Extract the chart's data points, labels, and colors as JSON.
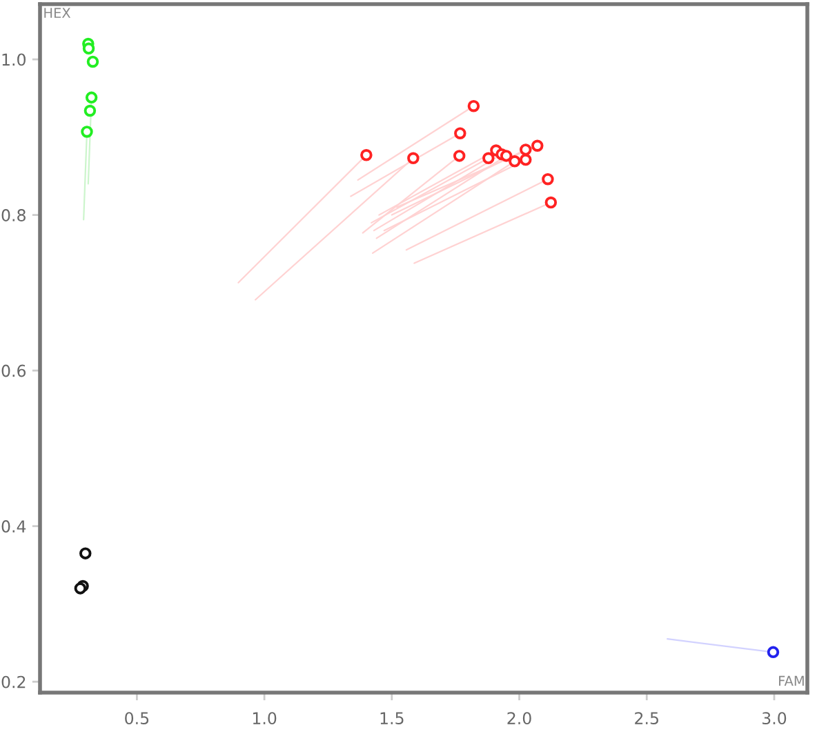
{
  "chart_data": {
    "type": "scatter",
    "xlabel": "FAM",
    "ylabel": "HEX",
    "marker": "circle",
    "xlim": [
      0.12,
      3.13
    ],
    "ylim": [
      0.186,
      1.071
    ],
    "xticks": [
      0.5,
      {
        "value": 1,
        "label": "1.0"
      },
      1.5,
      {
        "value": 2,
        "label": "2.0"
      },
      2.5,
      {
        "value": 3,
        "label": "3.0"
      }
    ],
    "yticks": [
      0.2,
      0.4,
      0.6,
      0.8,
      {
        "value": 1,
        "label": "1.0"
      }
    ],
    "series": [
      {
        "type": "line",
        "marker": "none",
        "color": "#ffd2d2",
        "x": [
          0.898,
          1.4
        ],
        "values": [
          0.713,
          0.877
        ]
      },
      {
        "type": "line",
        "marker": "none",
        "color": "#ffd2d2",
        "x": [
          0.965,
          1.584
        ],
        "values": [
          0.691,
          0.873
        ]
      },
      {
        "type": "line",
        "marker": "none",
        "color": "#ffd2d2",
        "x": [
          1.367,
          1.821
        ],
        "values": [
          0.845,
          0.94
        ]
      },
      {
        "type": "line",
        "marker": "none",
        "color": "#ffd2d2",
        "x": [
          1.339,
          1.768
        ],
        "values": [
          0.824,
          0.905
        ]
      },
      {
        "type": "line",
        "marker": "none",
        "color": "#ffd2d2",
        "x": [
          1.386,
          1.765
        ],
        "values": [
          0.777,
          0.876
        ]
      },
      {
        "type": "line",
        "marker": "none",
        "color": "#ffd2d2",
        "x": [
          1.42,
          1.879
        ],
        "values": [
          0.79,
          0.873
        ]
      },
      {
        "type": "line",
        "marker": "none",
        "color": "#ffd2d2",
        "x": [
          1.45,
          1.909
        ],
        "values": [
          0.8,
          0.883
        ]
      },
      {
        "type": "line",
        "marker": "none",
        "color": "#ffd2d2",
        "x": [
          1.43,
          1.931
        ],
        "values": [
          0.78,
          0.878
        ]
      },
      {
        "type": "line",
        "marker": "none",
        "color": "#ffd2d2",
        "x": [
          1.44,
          1.949
        ],
        "values": [
          0.77,
          0.876
        ]
      },
      {
        "type": "line",
        "marker": "none",
        "color": "#ffd2d2",
        "x": [
          1.425,
          1.982
        ],
        "values": [
          0.751,
          0.869
        ]
      },
      {
        "type": "line",
        "marker": "none",
        "color": "#ffd2d2",
        "x": [
          1.5,
          2.025
        ],
        "values": [
          0.8,
          0.884
        ]
      },
      {
        "type": "line",
        "marker": "none",
        "color": "#ffd2d2",
        "x": [
          1.47,
          2.025
        ],
        "values": [
          0.78,
          0.871
        ]
      },
      {
        "type": "line",
        "marker": "none",
        "color": "#ffd2d2",
        "x": [
          1.52,
          2.071
        ],
        "values": [
          0.81,
          0.889
        ]
      },
      {
        "type": "line",
        "marker": "none",
        "color": "#ffd2d2",
        "x": [
          1.557,
          2.112
        ],
        "values": [
          0.755,
          0.846
        ]
      },
      {
        "type": "line",
        "marker": "none",
        "color": "#ffd2d2",
        "x": [
          1.588,
          2.124
        ],
        "values": [
          0.738,
          0.816
        ]
      },
      {
        "type": "line",
        "marker": "none",
        "color": "#ccf5cc",
        "x": [
          0.291,
          0.304
        ],
        "values": [
          0.794,
          0.907
        ]
      },
      {
        "type": "line",
        "marker": "none",
        "color": "#ccf5cc",
        "x": [
          0.309,
          0.322
        ],
        "values": [
          0.84,
          0.951
        ]
      },
      {
        "type": "line",
        "marker": "none",
        "color": "#d2d2ff",
        "x": [
          2.581,
          2.996
        ],
        "values": [
          0.255,
          0.238
        ]
      },
      {
        "color": "#111111",
        "x": [
          0.298,
          0.288,
          0.278
        ],
        "values": [
          0.365,
          0.323,
          0.32
        ]
      },
      {
        "color": "#22ee22",
        "x": [
          0.309,
          0.311,
          0.327,
          0.322,
          0.316,
          0.304
        ],
        "values": [
          1.02,
          1.014,
          0.997,
          0.951,
          0.934,
          0.907
        ]
      },
      {
        "color": "#ff2222",
        "x": [
          1.4,
          1.584,
          1.821,
          1.768,
          1.765,
          1.879,
          1.909,
          1.931,
          1.949,
          1.982,
          2.025,
          2.025,
          2.071,
          2.112,
          2.124
        ],
        "values": [
          0.877,
          0.873,
          0.94,
          0.905,
          0.876,
          0.873,
          0.883,
          0.878,
          0.876,
          0.869,
          0.884,
          0.871,
          0.889,
          0.846,
          0.816
        ]
      },
      {
        "color": "#2222ee",
        "x": [
          2.996
        ],
        "values": [
          0.238
        ]
      }
    ]
  }
}
